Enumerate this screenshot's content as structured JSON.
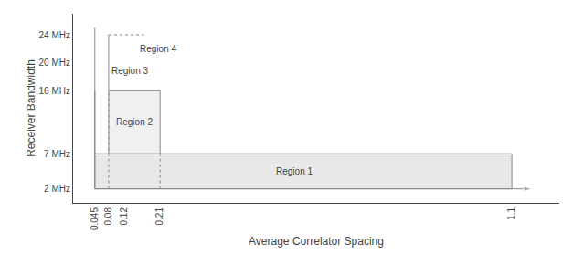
{
  "chart_data": {
    "type": "line",
    "xlabel": "Average Correlator Spacing",
    "ylabel": "Receiver Bandwidth",
    "xlim": [
      -0.01,
      1.22
    ],
    "ylim": [
      0,
      27
    ],
    "xticks": [
      0.045,
      0.08,
      0.12,
      0.21,
      1.1
    ],
    "yticks": [
      {
        "value": 2,
        "label": "2 MHz"
      },
      {
        "value": 7,
        "label": "7 MHz"
      },
      {
        "value": 16,
        "label": "16 MHz"
      },
      {
        "value": 20,
        "label": "20 MHz"
      },
      {
        "value": 24,
        "label": "24 MHz"
      }
    ],
    "grid": false,
    "regions": [
      {
        "x": [
          0.045,
          1.1
        ],
        "y": [
          2,
          7
        ],
        "color": "#e8e8e8"
      },
      {
        "x": [
          0.08,
          0.21
        ],
        "y": [
          7,
          16
        ],
        "color": "#f0f0f0"
      }
    ],
    "series": [
      {
        "x": [
          0.045,
          1.1
        ],
        "values": [
          7,
          7
        ],
        "color": "#888888",
        "line_style": "solid"
      },
      {
        "x": [
          1.1,
          1.1
        ],
        "values": [
          2,
          7
        ],
        "color": "#888888",
        "line_style": "solid"
      },
      {
        "x": [
          0.08,
          0.21
        ],
        "values": [
          16,
          16
        ],
        "color": "#888888",
        "line_style": "solid"
      },
      {
        "x": [
          0.21,
          0.21
        ],
        "values": [
          7,
          16
        ],
        "color": "#888888",
        "line_style": "solid"
      },
      {
        "x": [
          0.08,
          0.08
        ],
        "values": [
          7,
          16
        ],
        "color": "#888888",
        "line_style": "solid"
      },
      {
        "x": [
          0.045,
          0.045
        ],
        "values": [
          2,
          16
        ],
        "color": "#888888",
        "line_style": "solid"
      },
      {
        "x": [
          0.045,
          1.1
        ],
        "values": [
          7,
          7
        ],
        "color": "#888888",
        "line_style": "solid"
      },
      {
        "x": [
          0.08,
          0.08
        ],
        "values": [
          16,
          24
        ],
        "color": "#888888",
        "line_style": "solid"
      },
      {
        "x": [
          0.08,
          0.175
        ],
        "values": [
          24,
          24
        ],
        "color": "#888888",
        "line_style": "dotted"
      },
      {
        "x": [
          0.08,
          0.08
        ],
        "values": [
          2,
          16
        ],
        "color": "#888888",
        "line_style": "dotted"
      },
      {
        "x": [
          0.21,
          0.21
        ],
        "values": [
          2,
          7
        ],
        "color": "#888888",
        "line_style": "dotted"
      },
      {
        "x": [
          0.045,
          0.045
        ],
        "values": [
          2,
          25
        ],
        "color": "#888888",
        "line_style": "solid"
      },
      {
        "x": [
          0.045,
          1.15
        ],
        "values": [
          2,
          2
        ],
        "color": "#888888",
        "line_style": "solid",
        "marker": "arrow"
      },
      {
        "x": [
          0.045,
          1.1
        ],
        "values": [
          2,
          2
        ],
        "color": "#888888",
        "line_style": "solid"
      }
    ],
    "annotations": [
      {
        "text": "Region 1",
        "x": 0.55,
        "y": 4.5
      },
      {
        "text": "Region 2",
        "x": 0.145,
        "y": 11.5
      },
      {
        "text": "Region 3",
        "x": 0.082,
        "y": 18.8
      },
      {
        "text": "Region 4",
        "x": 0.155,
        "y": 22.0
      }
    ]
  }
}
